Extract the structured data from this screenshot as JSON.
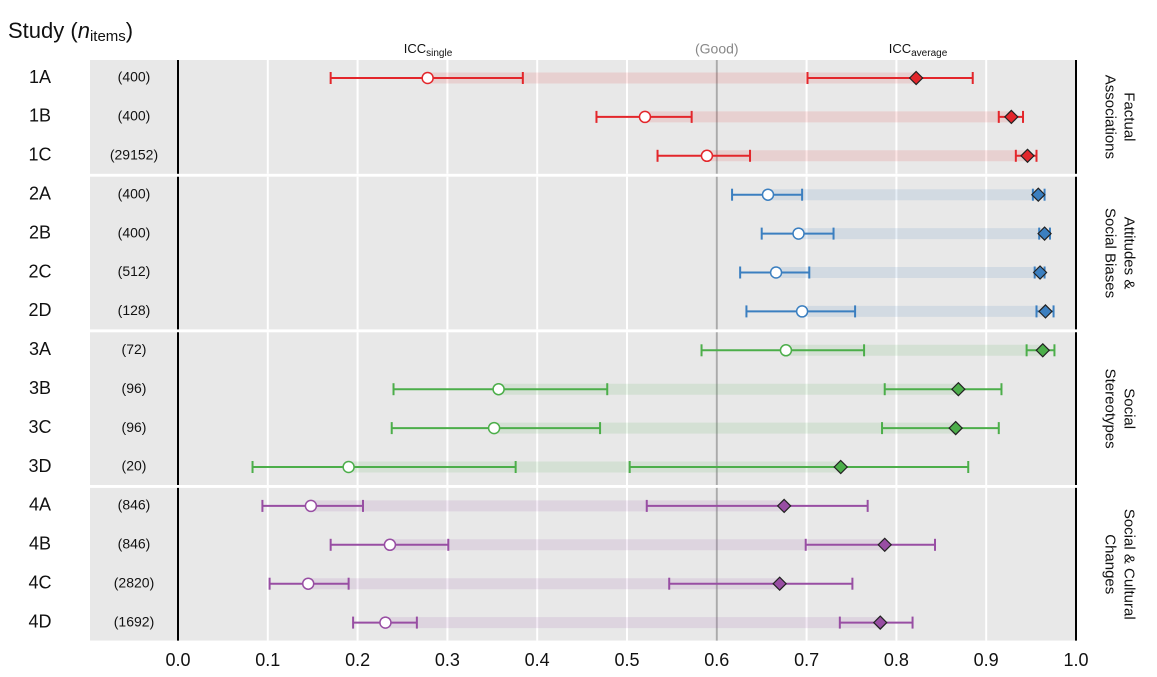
{
  "chart_data": {
    "type": "forest",
    "title_parts": [
      "Study (",
      "n",
      "items",
      ")"
    ],
    "single_label": [
      "ICC",
      "single"
    ],
    "average_label": [
      "ICC",
      "average"
    ],
    "reference": {
      "value": 0.6,
      "label": "(Good)"
    },
    "xlim": [
      0,
      1
    ],
    "xticks": [
      {
        "value": 0,
        "label": "0.0"
      },
      0.1,
      0.2,
      0.3,
      0.4,
      0.5,
      0.6,
      0.7,
      0.8,
      0.9,
      {
        "value": 1,
        "label": "1.0"
      }
    ],
    "grid": true,
    "groups": [
      {
        "name_lines": [
          "Factual",
          "Associations"
        ],
        "color": "#e3262b",
        "studies": [
          {
            "label": "1A",
            "n_label": "(400)",
            "single": [
              0.278,
              0.17,
              0.384
            ],
            "average": [
              0.822,
              0.701,
              0.885
            ]
          },
          {
            "label": "1B",
            "n_label": "(400)",
            "single": [
              0.52,
              0.466,
              0.572
            ],
            "average": [
              0.928,
              0.914,
              0.941
            ]
          },
          {
            "label": "1C",
            "n_label": "(29152)",
            "single": [
              0.589,
              0.534,
              0.637
            ],
            "average": [
              0.946,
              0.933,
              0.956
            ]
          }
        ]
      },
      {
        "name_lines": [
          "Attitudes &",
          "Social Biases"
        ],
        "color": "#3b7fc0",
        "studies": [
          {
            "label": "2A",
            "n_label": "(400)",
            "single": [
              0.657,
              0.617,
              0.695
            ],
            "average": [
              0.958,
              0.952,
              0.965
            ]
          },
          {
            "label": "2B",
            "n_label": "(400)",
            "single": [
              0.691,
              0.65,
              0.73
            ],
            "average": [
              0.965,
              0.959,
              0.971
            ]
          },
          {
            "label": "2C",
            "n_label": "(512)",
            "single": [
              0.666,
              0.626,
              0.703
            ],
            "average": [
              0.96,
              0.954,
              0.965
            ]
          },
          {
            "label": "2D",
            "n_label": "(128)",
            "single": [
              0.695,
              0.633,
              0.754
            ],
            "average": [
              0.966,
              0.956,
              0.975
            ]
          }
        ]
      },
      {
        "name_lines": [
          "Social",
          "Stereotypes"
        ],
        "color": "#4cae4a",
        "studies": [
          {
            "label": "3A",
            "n_label": "(72)",
            "single": [
              0.677,
              0.583,
              0.764
            ],
            "average": [
              0.963,
              0.945,
              0.976
            ]
          },
          {
            "label": "3B",
            "n_label": "(96)",
            "single": [
              0.357,
              0.24,
              0.478
            ],
            "average": [
              0.869,
              0.787,
              0.917
            ]
          },
          {
            "label": "3C",
            "n_label": "(96)",
            "single": [
              0.352,
              0.238,
              0.47
            ],
            "average": [
              0.866,
              0.784,
              0.914
            ]
          },
          {
            "label": "3D",
            "n_label": "(20)",
            "single": [
              0.19,
              0.083,
              0.376
            ],
            "average": [
              0.738,
              0.503,
              0.88
            ]
          }
        ]
      },
      {
        "name_lines": [
          "Social & Cultural",
          "Changes"
        ],
        "color": "#984ea3",
        "studies": [
          {
            "label": "4A",
            "n_label": "(846)",
            "single": [
              0.148,
              0.094,
              0.206
            ],
            "average": [
              0.675,
              0.522,
              0.768
            ]
          },
          {
            "label": "4B",
            "n_label": "(846)",
            "single": [
              0.236,
              0.17,
              0.301
            ],
            "average": [
              0.787,
              0.699,
              0.843
            ]
          },
          {
            "label": "4C",
            "n_label": "(2820)",
            "single": [
              0.145,
              0.102,
              0.19
            ],
            "average": [
              0.67,
              0.547,
              0.751
            ]
          },
          {
            "label": "4D",
            "n_label": "(1692)",
            "single": [
              0.231,
              0.195,
              0.266
            ],
            "average": [
              0.782,
              0.737,
              0.818
            ]
          }
        ]
      }
    ]
  }
}
